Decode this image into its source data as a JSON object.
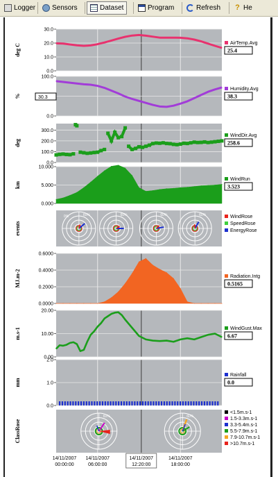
{
  "toolbar": {
    "items": [
      {
        "label": "Logger",
        "icon": "logger-icon"
      },
      {
        "label": "Sensors",
        "icon": "sensors-icon"
      },
      {
        "label": "Dataset",
        "icon": "dataset-icon",
        "active": true
      },
      {
        "label": "Program",
        "icon": "program-icon"
      },
      {
        "label": "Refresh",
        "icon": "refresh-icon"
      },
      {
        "label": "He",
        "icon": "help-icon"
      }
    ]
  },
  "colors": {
    "plot_bg": "#b5b8bc",
    "airtemp": "#e8326e",
    "humidity": "#a23cd8",
    "green": "#1b9e1b",
    "radiation": "#f26522",
    "rainfall": "#1c2fcf",
    "windrose": "#e8231c",
    "speedrose": "#3ecf3e",
    "energyrose": "#1c2fcf"
  },
  "x_axis": {
    "ticks": [
      {
        "date": "14/11/2007",
        "time": "00:00:00"
      },
      {
        "date": "14/11/2007",
        "time": "06:00:00"
      },
      {
        "date": "14/11/2007",
        "time": "12:20:00",
        "cursor": true
      },
      {
        "date": "14/11/2007",
        "time": "18:00:00"
      }
    ]
  },
  "chart_data": [
    {
      "type": "line",
      "ylabel": "deg C",
      "ylim": [
        0,
        30
      ],
      "yticks": [
        "30.0",
        "20.0",
        "10.0",
        "0.0"
      ],
      "legend": "AirTemp.Avg",
      "cursor_value": "25.4",
      "x": [
        0,
        1,
        2,
        3,
        4,
        5,
        6,
        7,
        8,
        9,
        10,
        11,
        12,
        13,
        14,
        15,
        16,
        17,
        18,
        19,
        20,
        21,
        22,
        23,
        24
      ],
      "values": [
        19.8,
        19.6,
        19.0,
        18.4,
        18.0,
        18.3,
        19.2,
        20.4,
        21.8,
        23.2,
        24.5,
        25.4,
        25.8,
        25.3,
        24.6,
        23.9,
        23.9,
        23.9,
        23.8,
        23.4,
        22.5,
        21.2,
        19.6,
        18.0,
        16.5
      ]
    },
    {
      "type": "line",
      "ylabel": "%",
      "ylim": [
        0,
        100
      ],
      "yticks": [
        "100.0",
        "50.0",
        "0.0"
      ],
      "legend": "Humidity.Avg",
      "cursor_value": "38.3",
      "cursor_label_value": "30.3",
      "x": [
        0,
        1,
        2,
        3,
        4,
        5,
        6,
        7,
        8,
        9,
        10,
        11,
        12,
        13,
        14,
        15,
        16,
        17,
        18,
        19,
        20,
        21,
        22,
        23,
        24
      ],
      "values": [
        88,
        86,
        84,
        82,
        80,
        79,
        76,
        71,
        64,
        57,
        49,
        43,
        38,
        33,
        28,
        24,
        23,
        26,
        31,
        37,
        45,
        53,
        61,
        67,
        72
      ]
    },
    {
      "type": "scatter",
      "ylabel": "deg",
      "ylim": [
        0,
        360
      ],
      "yticks": [
        "300.0",
        "200.0",
        "100.0",
        "0.0"
      ],
      "legend": "WindDir.Avg",
      "cursor_value": "258.6",
      "x": [
        0,
        0.5,
        1,
        1.5,
        2,
        2.5,
        2.8,
        3,
        3.5,
        4,
        4.5,
        5,
        5.5,
        6,
        6.5,
        7,
        7.5,
        8,
        8.5,
        9,
        9.5,
        10,
        10.5,
        11,
        11.5,
        12,
        12.5,
        13,
        13.5,
        14,
        14.5,
        15,
        15.5,
        16,
        16.5,
        17,
        17.5,
        18,
        18.5,
        19,
        19.5,
        20,
        20.5,
        21,
        21.5,
        22,
        22.5,
        23,
        23.5,
        24
      ],
      "values": [
        70,
        75,
        78,
        74,
        72,
        80,
        350,
        340,
        95,
        90,
        85,
        88,
        92,
        95,
        110,
        120,
        270,
        200,
        280,
        230,
        240,
        320,
        150,
        120,
        130,
        145,
        140,
        150,
        160,
        175,
        180,
        178,
        182,
        176,
        174,
        168,
        165,
        170,
        178,
        176,
        182,
        188,
        185,
        186,
        190,
        185,
        188,
        192,
        196,
        200
      ]
    },
    {
      "type": "area",
      "ylabel": "km",
      "ylim": [
        0,
        10
      ],
      "yticks": [
        "10.000",
        "5.000",
        "0.000"
      ],
      "legend": "WindRun",
      "cursor_value": "3.523",
      "x": [
        0,
        1,
        2,
        3,
        4,
        5,
        6,
        7,
        8,
        9,
        10,
        11,
        12,
        13,
        14,
        15,
        16,
        17,
        18,
        19,
        20,
        21,
        22,
        23,
        24
      ],
      "values": [
        1.1,
        1.5,
        2.2,
        3.0,
        4.3,
        5.8,
        7.4,
        8.9,
        10.1,
        10.4,
        9.6,
        7.6,
        4.3,
        3.3,
        3.5,
        3.8,
        4.0,
        4.1,
        4.3,
        4.4,
        4.6,
        4.8,
        4.9,
        5.0,
        5.2
      ]
    },
    {
      "type": "rose",
      "ylabel": "events",
      "legend": [
        "WindRose",
        "SpeedRose",
        "EnergyRose"
      ],
      "rose_count": 4,
      "ring_label": "60%",
      "ring_label_left": "0%"
    },
    {
      "type": "area",
      "ylabel": "MJ.m-2",
      "ylim": [
        0,
        0.6
      ],
      "yticks": [
        "0.6000",
        "0.4000",
        "0.2000",
        "0.0000"
      ],
      "legend": "Radiation.Intg",
      "cursor_value": "0.5165",
      "x": [
        0,
        1,
        2,
        3,
        4,
        5,
        6,
        7,
        8,
        9,
        10,
        11,
        12,
        13,
        14,
        15,
        16,
        17,
        18,
        19,
        20,
        21,
        22,
        23,
        24
      ],
      "values": [
        0,
        0,
        0,
        0,
        0,
        0,
        0,
        0.02,
        0.07,
        0.14,
        0.24,
        0.36,
        0.5,
        0.54,
        0.46,
        0.41,
        0.37,
        0.3,
        0.18,
        0.02,
        0,
        0,
        0,
        0,
        0
      ]
    },
    {
      "type": "line",
      "ylabel": "m.s-1",
      "ylim": [
        0,
        20
      ],
      "yticks": [
        "20.00",
        "10.00",
        "0.00"
      ],
      "legend": "WindGust.Max",
      "cursor_value": "6.67",
      "x": [
        0,
        0.5,
        1,
        1.5,
        2,
        2.5,
        3,
        3.5,
        4,
        4.5,
        5,
        5.5,
        6,
        6.5,
        7,
        7.5,
        8,
        8.5,
        9,
        9.5,
        10,
        11,
        12,
        13,
        14,
        15,
        16,
        17,
        18,
        19,
        20,
        21,
        22,
        23,
        24
      ],
      "values": [
        3.5,
        5.0,
        4.8,
        5.2,
        6.0,
        6.3,
        5.5,
        2.5,
        3.0,
        6.5,
        9.5,
        11.0,
        13.0,
        14.5,
        16.5,
        17.5,
        18.5,
        19.0,
        19.2,
        18.0,
        16.0,
        12.5,
        9.0,
        7.5,
        7.0,
        6.8,
        7.0,
        6.5,
        7.5,
        8.0,
        7.5,
        8.5,
        9.5,
        10.0,
        8.5
      ]
    },
    {
      "type": "bar",
      "ylabel": "mm",
      "ylim": [
        0,
        2
      ],
      "yticks": [
        "2.0",
        "1.0",
        "0.0"
      ],
      "legend": "Rainfall",
      "cursor_value": "0.0",
      "bar_count": 60
    },
    {
      "type": "rose",
      "ylabel": "ClassRose",
      "ring_label": "60%",
      "legend": [
        {
          "label": "<1.5m.s-1",
          "color": "#000000"
        },
        {
          "label": "1.5-3.3m.s-1",
          "color": "#c800c8"
        },
        {
          "label": "3.3-5.4m.s-1",
          "color": "#1c2fcf"
        },
        {
          "label": "5.5-7.9m.s-1",
          "color": "#1b9e1b"
        },
        {
          "label": "7.9-10.7m.s-1",
          "color": "#f5a623"
        },
        {
          "label": ">10.7m.s-1",
          "color": "#e8231c"
        }
      ]
    }
  ]
}
